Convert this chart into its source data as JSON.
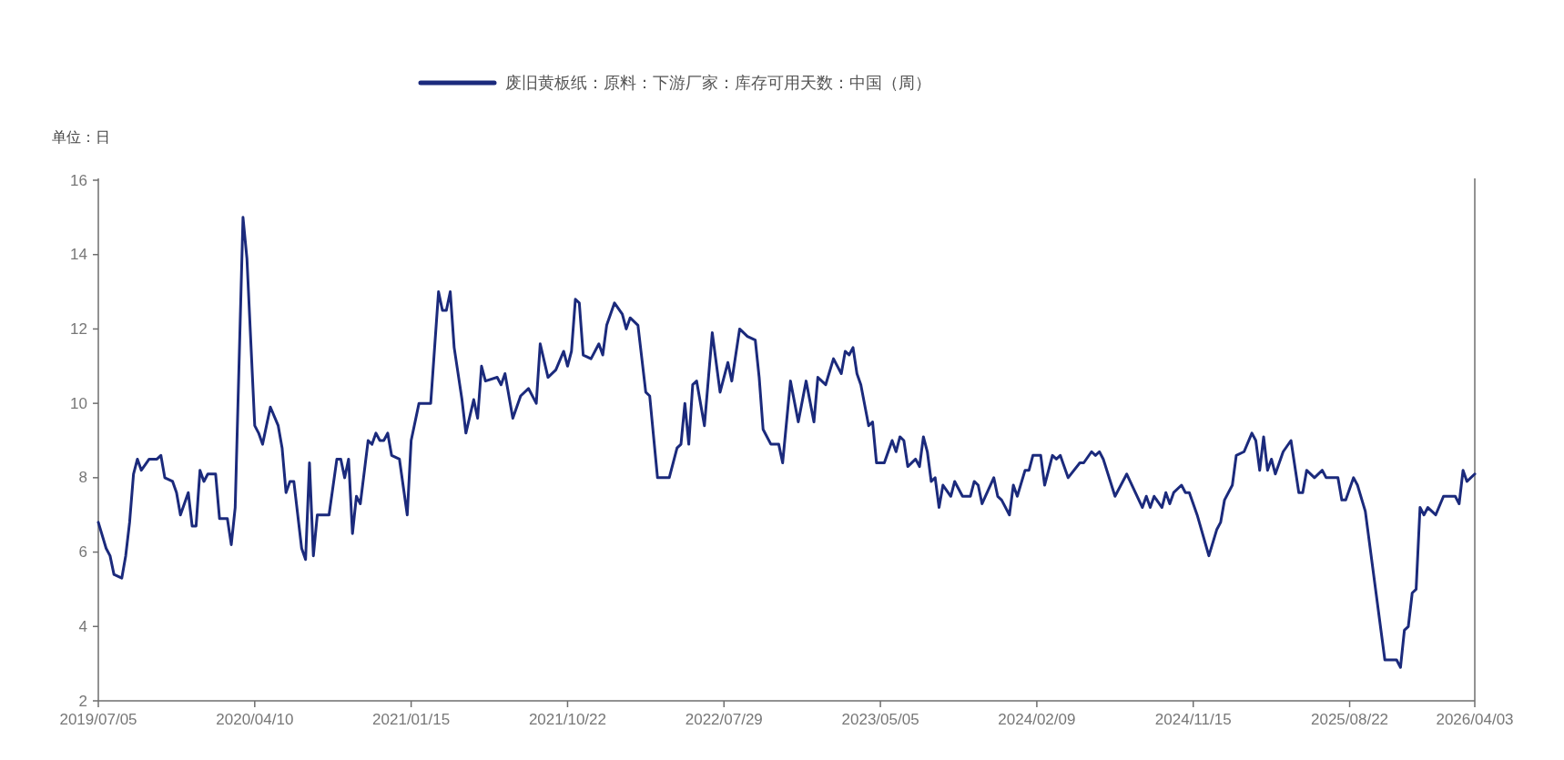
{
  "chart_data": {
    "type": "line",
    "ylabel": "单位：日",
    "legend": "top",
    "xlim": [
      "2019-07-05",
      "2026-04-03"
    ],
    "xticks": [
      {
        "value": "2019-07-05",
        "label": "2019/07/05"
      },
      {
        "value": "2020-04-10",
        "label": "2020/04/10"
      },
      {
        "value": "2021-01-15",
        "label": "2021/01/15"
      },
      {
        "value": "2021-10-22",
        "label": "2021/10/22"
      },
      {
        "value": "2022-07-29",
        "label": "2022/07/29"
      },
      {
        "value": "2023-05-05",
        "label": "2023/05/05"
      },
      {
        "value": "2024-02-09",
        "label": "2024/02/09"
      },
      {
        "value": "2024-11-15",
        "label": "2024/11/15"
      },
      {
        "value": "2025-08-22",
        "label": "2025/08/22"
      },
      {
        "value": "2026-04-03",
        "label": "2026/04/03"
      }
    ],
    "ylim": [
      2,
      16
    ],
    "yticks": [
      2,
      4,
      6,
      8,
      10,
      12,
      14,
      16
    ],
    "series": [
      {
        "name": "废旧黄板纸：原料：下游厂家：库存可用天数：中国（周）",
        "color": "#1b2a7c",
        "x": [
          "2019-07-05",
          "2019-07-19",
          "2019-07-26",
          "2019-08-02",
          "2019-08-16",
          "2019-08-23",
          "2019-08-30",
          "2019-09-06",
          "2019-09-13",
          "2019-09-20",
          "2019-10-04",
          "2019-10-18",
          "2019-10-25",
          "2019-11-01",
          "2019-11-15",
          "2019-11-22",
          "2019-11-29",
          "2019-12-13",
          "2019-12-20",
          "2019-12-27",
          "2020-01-03",
          "2020-01-10",
          "2020-01-17",
          "2020-01-31",
          "2020-02-07",
          "2020-02-21",
          "2020-02-28",
          "2020-03-06",
          "2020-03-20",
          "2020-03-27",
          "2020-04-10",
          "2020-04-17",
          "2020-04-24",
          "2020-05-08",
          "2020-05-22",
          "2020-05-29",
          "2020-06-05",
          "2020-06-12",
          "2020-06-19",
          "2020-07-03",
          "2020-07-10",
          "2020-07-17",
          "2020-07-24",
          "2020-07-31",
          "2020-08-07",
          "2020-08-21",
          "2020-09-04",
          "2020-09-11",
          "2020-09-18",
          "2020-09-25",
          "2020-10-02",
          "2020-10-09",
          "2020-10-16",
          "2020-10-30",
          "2020-11-06",
          "2020-11-13",
          "2020-11-20",
          "2020-11-27",
          "2020-12-04",
          "2020-12-11",
          "2020-12-25",
          "2021-01-08",
          "2021-01-15",
          "2021-01-29",
          "2021-02-19",
          "2021-03-05",
          "2021-03-12",
          "2021-03-19",
          "2021-03-26",
          "2021-04-02",
          "2021-04-16",
          "2021-04-23",
          "2021-05-07",
          "2021-05-14",
          "2021-05-21",
          "2021-05-28",
          "2021-06-18",
          "2021-06-25",
          "2021-07-02",
          "2021-07-16",
          "2021-07-30",
          "2021-08-13",
          "2021-08-27",
          "2021-09-03",
          "2021-09-17",
          "2021-10-01",
          "2021-10-15",
          "2021-10-22",
          "2021-10-29",
          "2021-11-05",
          "2021-11-12",
          "2021-11-19",
          "2021-12-03",
          "2021-12-17",
          "2021-12-24",
          "2021-12-31",
          "2022-01-14",
          "2022-01-28",
          "2022-02-04",
          "2022-02-11",
          "2022-02-25",
          "2022-03-11",
          "2022-03-18",
          "2022-04-01",
          "2022-04-22",
          "2022-05-06",
          "2022-05-13",
          "2022-05-20",
          "2022-05-27",
          "2022-06-03",
          "2022-06-10",
          "2022-06-24",
          "2022-07-08",
          "2022-07-22",
          "2022-08-05",
          "2022-08-12",
          "2022-08-26",
          "2022-09-09",
          "2022-09-23",
          "2022-09-30",
          "2022-10-07",
          "2022-10-21",
          "2022-11-04",
          "2022-11-11",
          "2022-11-25",
          "2022-12-09",
          "2022-12-23",
          "2023-01-06",
          "2023-01-13",
          "2023-01-27",
          "2023-02-10",
          "2023-02-24",
          "2023-03-03",
          "2023-03-10",
          "2023-03-17",
          "2023-03-24",
          "2023-03-31",
          "2023-04-14",
          "2023-04-21",
          "2023-04-28",
          "2023-05-12",
          "2023-05-26",
          "2023-06-02",
          "2023-06-09",
          "2023-06-16",
          "2023-06-23",
          "2023-07-07",
          "2023-07-14",
          "2023-07-21",
          "2023-07-28",
          "2023-08-04",
          "2023-08-11",
          "2023-08-18",
          "2023-08-25",
          "2023-09-08",
          "2023-09-15",
          "2023-09-29",
          "2023-10-13",
          "2023-10-20",
          "2023-10-27",
          "2023-11-03",
          "2023-11-24",
          "2023-12-01",
          "2023-12-08",
          "2023-12-22",
          "2023-12-29",
          "2024-01-05",
          "2024-01-19",
          "2024-01-26",
          "2024-02-02",
          "2024-02-16",
          "2024-02-23",
          "2024-03-08",
          "2024-03-15",
          "2024-03-22",
          "2024-04-05",
          "2024-04-26",
          "2024-05-03",
          "2024-05-17",
          "2024-05-24",
          "2024-05-31",
          "2024-06-07",
          "2024-06-28",
          "2024-07-19",
          "2024-08-16",
          "2024-08-23",
          "2024-08-30",
          "2024-09-06",
          "2024-09-20",
          "2024-09-27",
          "2024-10-04",
          "2024-10-11",
          "2024-10-25",
          "2024-11-01",
          "2024-11-08",
          "2024-11-22",
          "2024-12-13",
          "2024-12-27",
          "2025-01-03",
          "2025-01-10",
          "2025-01-24",
          "2025-01-31",
          "2025-02-14",
          "2025-02-28",
          "2025-03-07",
          "2025-03-14",
          "2025-03-21",
          "2025-03-28",
          "2025-04-04",
          "2025-04-11",
          "2025-04-25",
          "2025-05-09",
          "2025-05-23",
          "2025-05-30",
          "2025-06-06",
          "2025-06-20",
          "2025-07-04",
          "2025-07-11",
          "2025-08-01",
          "2025-08-08",
          "2025-08-15",
          "2025-08-29",
          "2025-09-05",
          "2025-09-19",
          "2025-10-24",
          "2025-11-14",
          "2025-11-21",
          "2025-11-28",
          "2025-12-05",
          "2025-12-12",
          "2025-12-19",
          "2025-12-26",
          "2026-01-02",
          "2026-01-09",
          "2026-01-23",
          "2026-02-06",
          "2026-02-27",
          "2026-03-06",
          "2026-03-13",
          "2026-03-20",
          "2026-04-03"
        ],
        "values": [
          6.8,
          6.1,
          5.9,
          5.4,
          5.3,
          5.9,
          6.8,
          8.1,
          8.5,
          8.2,
          8.5,
          8.5,
          8.6,
          8.0,
          7.9,
          7.6,
          7.0,
          7.6,
          6.7,
          6.7,
          8.2,
          7.9,
          8.1,
          8.1,
          6.9,
          6.9,
          6.2,
          7.2,
          15.0,
          13.9,
          9.4,
          9.2,
          8.9,
          9.9,
          9.4,
          8.8,
          7.6,
          7.9,
          7.9,
          6.1,
          5.8,
          8.4,
          5.9,
          7.0,
          7.0,
          7.0,
          8.5,
          8.5,
          8.0,
          8.5,
          6.5,
          7.5,
          7.3,
          9.0,
          8.9,
          9.2,
          9.0,
          9.0,
          9.2,
          8.6,
          8.5,
          7.0,
          9.0,
          10.0,
          10.0,
          13.0,
          12.5,
          12.5,
          13.0,
          11.5,
          10.1,
          9.2,
          10.1,
          9.6,
          11.0,
          10.6,
          10.7,
          10.5,
          10.8,
          9.6,
          10.2,
          10.4,
          10.0,
          11.6,
          10.7,
          10.9,
          11.4,
          11.0,
          11.4,
          12.8,
          12.7,
          11.3,
          11.2,
          11.6,
          11.3,
          12.1,
          12.7,
          12.4,
          12.0,
          12.3,
          12.1,
          10.3,
          10.2,
          8.0,
          8.0,
          8.8,
          8.9,
          10.0,
          8.9,
          10.5,
          10.6,
          9.4,
          11.9,
          10.3,
          11.1,
          10.6,
          12.0,
          11.8,
          11.7,
          10.7,
          9.3,
          8.9,
          8.9,
          8.4,
          10.6,
          9.5,
          10.6,
          9.5,
          10.7,
          10.5,
          11.2,
          10.8,
          11.4,
          11.3,
          11.5,
          10.8,
          10.5,
          9.4,
          9.5,
          8.4,
          8.4,
          9.0,
          8.7,
          9.1,
          9.0,
          8.3,
          8.5,
          8.3,
          9.1,
          8.7,
          7.9,
          8.0,
          7.2,
          7.8,
          7.5,
          7.9,
          7.5,
          7.5,
          7.9,
          7.8,
          7.3,
          8.0,
          7.5,
          7.4,
          7.0,
          7.8,
          7.5,
          8.2,
          8.2,
          8.6,
          8.6,
          7.8,
          8.6,
          8.5,
          8.6,
          8.0,
          8.4,
          8.4,
          8.7,
          8.6,
          8.7,
          8.5,
          7.5,
          8.1,
          7.2,
          7.5,
          7.2,
          7.5,
          7.2,
          7.6,
          7.3,
          7.6,
          7.8,
          7.6,
          7.6,
          7.0,
          5.9,
          6.6,
          6.8,
          7.4,
          7.8,
          8.6,
          8.7,
          9.2,
          9.0,
          8.2,
          9.1,
          8.2,
          8.5,
          8.1,
          8.7,
          9.0,
          7.6,
          7.6,
          8.2,
          8.0,
          8.2,
          8.0,
          8.0,
          7.4,
          7.4,
          8.0,
          7.8,
          7.1,
          3.1,
          3.1,
          2.9,
          3.9,
          4.0,
          4.9,
          5.0,
          7.2,
          7.0,
          7.2,
          7.0,
          7.5,
          7.5,
          7.3,
          8.2,
          7.9,
          8.1
        ]
      }
    ]
  }
}
